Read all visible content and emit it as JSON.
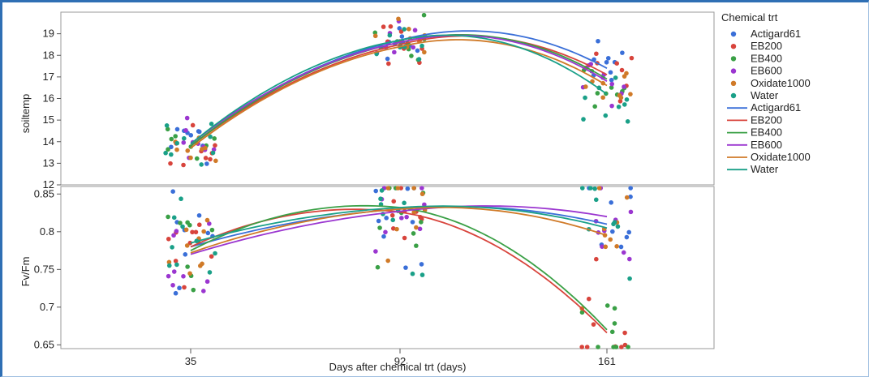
{
  "chart_data": {
    "type": "scatter",
    "xlabel": "Days after chemical trt (days)",
    "x_categories": [
      "35",
      "92",
      "161"
    ],
    "legend": {
      "title": "Chemical trt",
      "position": "right",
      "marker_entries": [
        "Actigard61",
        "EB200",
        "EB400",
        "EB600",
        "Oxidate1000",
        "Water"
      ],
      "line_entries": [
        "Actigard61",
        "EB200",
        "EB400",
        "EB600",
        "Oxidate1000",
        "Water"
      ]
    },
    "colors": {
      "Actigard61": "#3a6fd8",
      "EB200": "#d8443c",
      "EB400": "#3aa046",
      "EB600": "#9b36d0",
      "Oxidate1000": "#d07a28",
      "Water": "#1aa088"
    },
    "panels": [
      {
        "ylabel": "soiltemp",
        "ylim": [
          12,
          20
        ],
        "yticks": [
          "12",
          "13",
          "14",
          "15",
          "16",
          "17",
          "18",
          "19"
        ],
        "fit_means": {
          "Actigard61": [
            13.9,
            18.7,
            17.4
          ],
          "EB200": [
            13.8,
            18.5,
            17.1
          ],
          "EB400": [
            13.8,
            18.6,
            16.9
          ],
          "EB600": [
            13.9,
            18.6,
            16.8
          ],
          "Oxidate1000": [
            13.7,
            18.4,
            16.6
          ],
          "Water": [
            13.9,
            18.7,
            16.2
          ]
        },
        "spread": 0.55
      },
      {
        "ylabel": "Fv/Fm",
        "ylim": [
          0.645,
          0.86
        ],
        "yticks": [
          "0.65",
          "0.7",
          "0.75",
          "0.8",
          "0.85"
        ],
        "fit_means": {
          "Actigard61": [
            0.78,
            0.83,
            0.81
          ],
          "EB200": [
            0.78,
            0.826,
            0.666
          ],
          "EB400": [
            0.775,
            0.832,
            0.67
          ],
          "EB600": [
            0.77,
            0.827,
            0.82
          ],
          "Oxidate1000": [
            0.772,
            0.83,
            0.795
          ],
          "Water": [
            0.785,
            0.832,
            0.805
          ]
        },
        "spread": 0.035
      }
    ]
  }
}
